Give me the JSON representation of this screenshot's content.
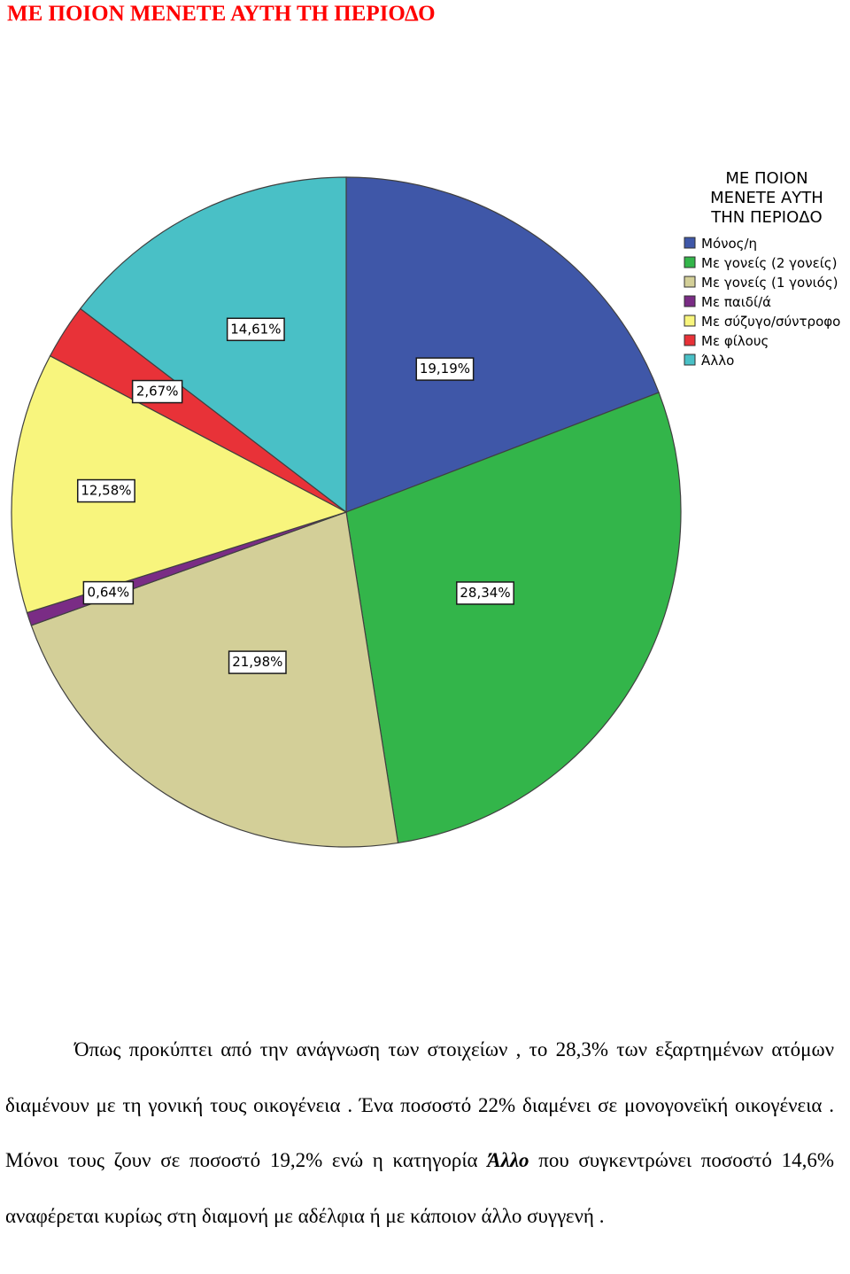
{
  "heading": "ΜΕ ΠΟΙΟΝ ΜΕΝΕΤΕ ΑΥΤΗ ΤΗ ΠΕΡΙΟΔΟ",
  "chart_data": {
    "type": "pie",
    "legend_title": [
      "ΜΕ ΠΟΙΟΝ",
      "ΜΕΝΕΤΕ ΑΥΤΗ",
      "ΤΗΝ ΠΕΡΙΟΔΟ"
    ],
    "legend_position": "top-right",
    "slices": [
      {
        "label": "Μόνος/η",
        "value": 19.19,
        "value_label": "19,19%",
        "color": "#3f57a8"
      },
      {
        "label": "Με γονείς (2 γονείς)",
        "value": 28.34,
        "value_label": "28,34%",
        "color": "#33b54a"
      },
      {
        "label": "Με γονείς (1 γονιός)",
        "value": 21.98,
        "value_label": "21,98%",
        "color": "#d3cf98"
      },
      {
        "label": "Με παιδί/ά",
        "value": 0.64,
        "value_label": "0,64%",
        "color": "#7a2c85"
      },
      {
        "label": "Με σύζυγο/σύντροφο",
        "value": 12.58,
        "value_label": "12,58%",
        "color": "#f8f57d"
      },
      {
        "label": "Με φίλους",
        "value": 2.67,
        "value_label": "2,67%",
        "color": "#e83238"
      },
      {
        "label": "Άλλο",
        "value": 14.61,
        "value_label": "14,61%",
        "color": "#49c0c6"
      }
    ]
  },
  "body": {
    "para_start": "Όπως προκύπτει από την ανάγνωση των στοιχείων , το 28,3% των εξαρτημένων ατόμων διαμένουν με τη γονική τους οικογένεια . Ένα ποσοστό 22% διαμένει σε μονογονεϊκή οικογένεια . Μόνοι τους ζουν σε ποσοστό 19,2% ενώ η κατηγορία ",
    "para_emph": "Άλλο",
    "para_end": " που συγκεντρώνει ποσοστό 14,6% αναφέρεται κυρίως στη διαμονή με αδέλφια ή με κάποιον άλλο συγγενή ."
  }
}
